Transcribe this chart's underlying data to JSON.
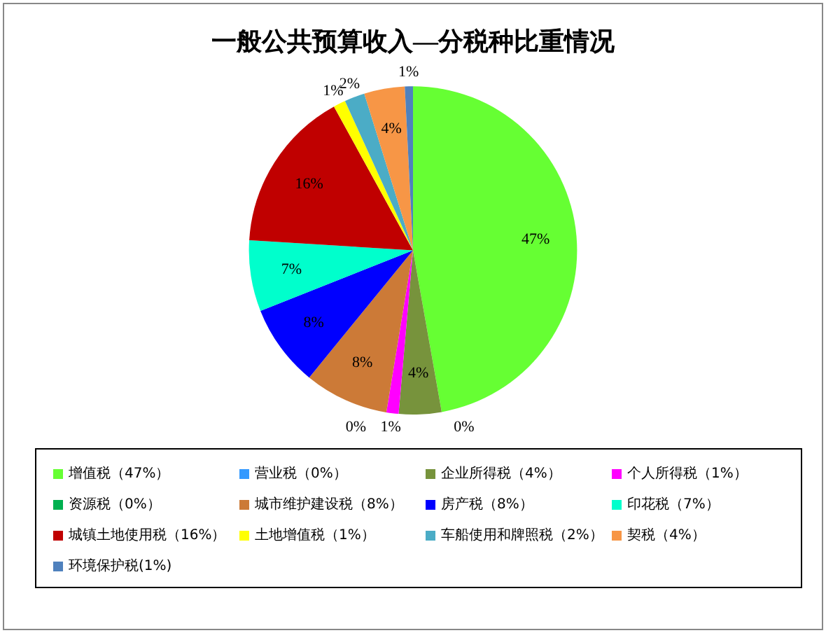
{
  "chart_data": {
    "type": "pie",
    "title": "一般公共预算收入—分税种比重情况",
    "categories": [
      "增值税（47%）",
      "营业税（0%）",
      "企业所得税（4%）",
      "个人所得税（1%）",
      "资源税（0%）",
      "城市维护建设税（8%）",
      "房产税（8%）",
      "印花税（7%）",
      "城镇土地使用税（16%）",
      "土地增值税（1%）",
      "车船使用和牌照税（2%）",
      "契税（4%）",
      "环境保护税(1%)"
    ],
    "values": [
      47.2,
      0,
      4.2,
      1.2,
      0,
      8.3,
      8.1,
      7.0,
      16.0,
      1.2,
      2.0,
      4.0,
      0.8
    ],
    "value_labels": [
      "47%",
      "0%",
      "4%",
      "1%",
      "0%",
      "8%",
      "8%",
      "7%",
      "16%",
      "1%",
      "2%",
      "4%",
      "1%"
    ],
    "colors": [
      "#66ff33",
      "#3399ff",
      "#77933c",
      "#ff00ff",
      "#00b050",
      "#cc7a37",
      "#0000ff",
      "#00ffcc",
      "#c00000",
      "#ffff00",
      "#4bacc6",
      "#f79646",
      "#4f81bd"
    ],
    "legend": "bottom"
  }
}
